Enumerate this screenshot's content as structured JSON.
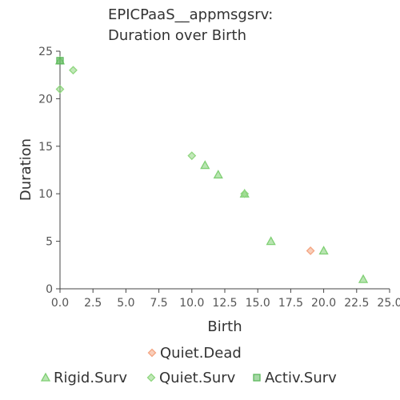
{
  "chart_data": {
    "type": "scatter",
    "title_lines": [
      "EPICPaaS__appmsgsrv:",
      "Duration over Birth"
    ],
    "xlabel": "Birth",
    "ylabel": "Duration",
    "xlim": [
      0,
      25
    ],
    "ylim": [
      0,
      25
    ],
    "x_ticks": [
      "0.0",
      "2.5",
      "5.0",
      "7.5",
      "10.0",
      "12.5",
      "15.0",
      "17.5",
      "20.0",
      "22.5",
      "25.0"
    ],
    "y_ticks": [
      "0",
      "5",
      "10",
      "15",
      "20",
      "25"
    ],
    "grid": false,
    "legend_position": "bottom",
    "series": [
      {
        "name": "Quiet.Dead",
        "marker": "diamond",
        "color": "#f4a582",
        "points": [
          [
            19,
            4
          ]
        ]
      },
      {
        "name": "Rigid.Surv",
        "marker": "triangle",
        "color": "#7fcf73",
        "points": [
          [
            0,
            24
          ],
          [
            11,
            13
          ],
          [
            12,
            12
          ],
          [
            14,
            10
          ],
          [
            16,
            5
          ],
          [
            20,
            4
          ],
          [
            23,
            1
          ]
        ]
      },
      {
        "name": "Quiet.Surv",
        "marker": "diamond",
        "color": "#8fd67f",
        "points": [
          [
            0,
            21
          ],
          [
            1,
            23
          ],
          [
            10,
            14
          ],
          [
            14,
            10
          ]
        ]
      },
      {
        "name": "Activ.Surv",
        "marker": "square",
        "color": "#5cb85c",
        "points": [
          [
            0,
            24
          ]
        ]
      }
    ]
  }
}
